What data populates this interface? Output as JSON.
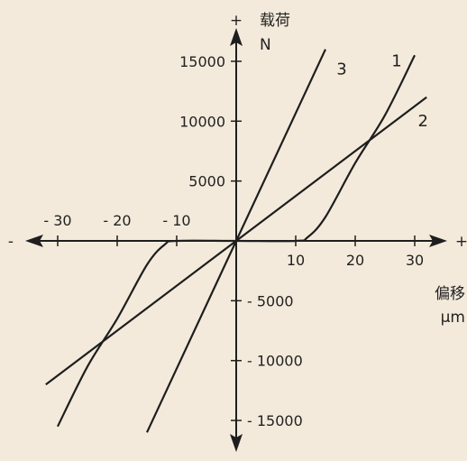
{
  "chart_data": {
    "type": "line",
    "title": "",
    "xlabel": "偏移",
    "xunit": "μm",
    "ylabel": "载荷",
    "yunit": "N",
    "x_positive_sign": "+",
    "x_negative_sign": "-",
    "y_positive_sign": "+",
    "xlim": [
      -30,
      30
    ],
    "ylim": [
      -15000,
      15000
    ],
    "x_ticks": [
      -30,
      -20,
      -10,
      10,
      20,
      30
    ],
    "x_tick_labels": [
      "- 30",
      "- 20",
      "- 10",
      "10",
      "20",
      "30"
    ],
    "y_ticks": [
      15000,
      10000,
      5000,
      -5000,
      -10000,
      -15000
    ],
    "y_tick_labels": [
      "15000",
      "10000",
      "5000",
      "- 5000",
      "- 10000",
      "- 15000"
    ],
    "grid": false,
    "series": [
      {
        "label": "1",
        "points": [
          [
            -30,
            -15500
          ],
          [
            -25,
            -10500
          ],
          [
            -20,
            -6500
          ],
          [
            -15,
            -2000
          ],
          [
            -12,
            -300
          ],
          [
            -10,
            0
          ],
          [
            0,
            0
          ],
          [
            10,
            0
          ],
          [
            12,
            300
          ],
          [
            15,
            2000
          ],
          [
            20,
            6500
          ],
          [
            25,
            10500
          ],
          [
            30,
            15500
          ]
        ]
      },
      {
        "label": "2",
        "points": [
          [
            -32,
            -12000
          ],
          [
            0,
            0
          ],
          [
            32,
            12000
          ]
        ]
      },
      {
        "label": "3",
        "points": [
          [
            -15,
            -16000
          ],
          [
            0,
            0
          ],
          [
            15,
            16000
          ]
        ]
      }
    ]
  }
}
